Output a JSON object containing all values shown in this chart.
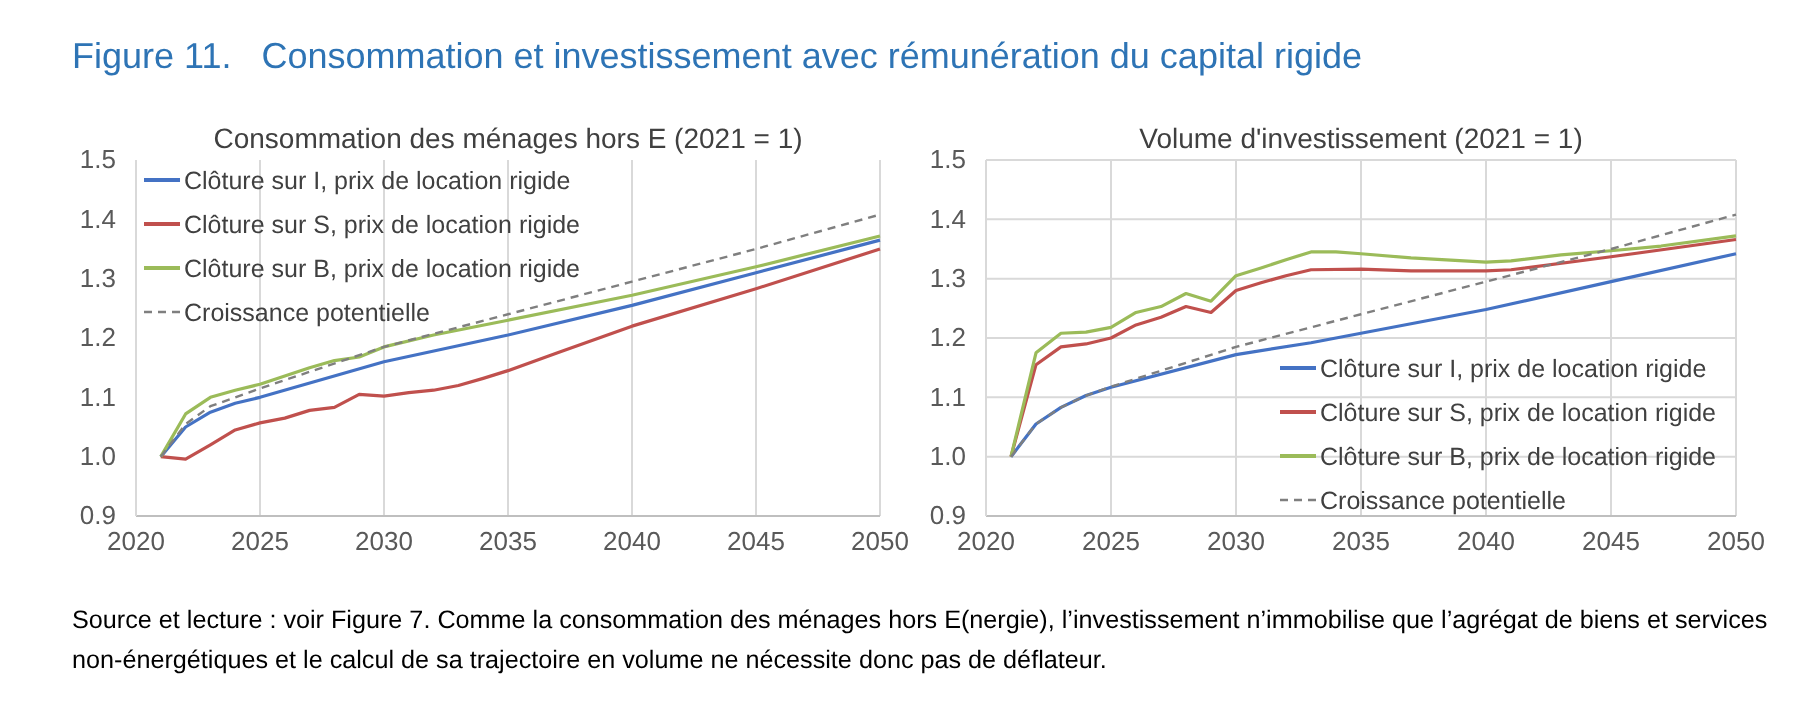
{
  "chart_data": [
    {
      "type": "line",
      "title": "Consommation des ménages hors E (2021 = 1)",
      "annotations": [
        "Figure 11.   Consommation et investissement avec rémunération du capital rigide"
      ],
      "xlim": [
        2020,
        2050
      ],
      "xticks": [
        2020,
        2025,
        2030,
        2035,
        2040,
        2045,
        2050
      ],
      "ylim": [
        0.9,
        1.5
      ],
      "yticks": [
        {
          "value": 0.9,
          "label": "0.9"
        },
        {
          "value": 1.0,
          "label": "1.0"
        },
        {
          "value": 1.1,
          "label": "1.1"
        },
        {
          "value": 1.2,
          "label": "1.2"
        },
        {
          "value": 1.3,
          "label": "1.3"
        },
        {
          "value": 1.4,
          "label": "1.4"
        },
        {
          "value": 1.5,
          "label": "1.5"
        }
      ],
      "grid": "x",
      "legend": "top left",
      "line_style": "solid",
      "marker": "none",
      "series": [
        {
          "name": "Clôture sur I, prix de location rigide",
          "color": "#4472c4",
          "x": [
            2021,
            2022,
            2023,
            2024,
            2025,
            2030,
            2035,
            2040,
            2045,
            2050
          ],
          "values": [
            1.0,
            1.05,
            1.075,
            1.09,
            1.1,
            1.16,
            1.205,
            1.255,
            1.31,
            1.365
          ]
        },
        {
          "name": "Clôture sur S, prix de location rigide",
          "color": "#c0504d",
          "x": [
            2021,
            2022,
            2023,
            2024,
            2025,
            2026,
            2027,
            2028,
            2029,
            2030,
            2031,
            2032,
            2033,
            2034,
            2035,
            2037,
            2040,
            2045,
            2050
          ],
          "values": [
            1.0,
            0.996,
            1.02,
            1.045,
            1.057,
            1.065,
            1.078,
            1.083,
            1.105,
            1.102,
            1.108,
            1.112,
            1.12,
            1.132,
            1.145,
            1.175,
            1.22,
            1.283,
            1.35
          ]
        },
        {
          "name": "Clôture sur B, prix de location rigide",
          "color": "#9bbb59",
          "x": [
            2021,
            2022,
            2023,
            2024,
            2025,
            2027,
            2028,
            2029,
            2030,
            2032,
            2035,
            2040,
            2045,
            2050
          ],
          "values": [
            1.0,
            1.072,
            1.1,
            1.112,
            1.122,
            1.15,
            1.162,
            1.168,
            1.185,
            1.205,
            1.23,
            1.272,
            1.32,
            1.372
          ]
        },
        {
          "name": "Croissance potentielle",
          "color": "#7f7f7f",
          "line_style": "dashed",
          "x": [
            2021,
            2022,
            2023,
            2025,
            2030,
            2035,
            2040,
            2045,
            2050
          ],
          "values": [
            1.0,
            1.055,
            1.085,
            1.115,
            1.185,
            1.24,
            1.295,
            1.35,
            1.408
          ]
        }
      ]
    },
    {
      "type": "line",
      "title": "Volume d'investissement (2021 = 1)",
      "annotations": [
        "Source et lecture : voir Figure 7. Comme la consommation des ménages hors E(nergie), l’investissement n’immobilise que l’agrégat de biens et services non-énergétiques et le calcul de sa trajectoire en volume ne nécessite donc pas de déflateur."
      ],
      "xlim": [
        2020,
        2050
      ],
      "xticks": [
        2020,
        2025,
        2030,
        2035,
        2040,
        2045,
        2050
      ],
      "ylim": [
        0.9,
        1.5
      ],
      "yticks": [
        {
          "value": 0.9,
          "label": "0.9"
        },
        {
          "value": 1.0,
          "label": "1.0"
        },
        {
          "value": 1.1,
          "label": "1.1"
        },
        {
          "value": 1.2,
          "label": "1.2"
        },
        {
          "value": 1.3,
          "label": "1.3"
        },
        {
          "value": 1.4,
          "label": "1.4"
        },
        {
          "value": 1.5,
          "label": "1.5"
        }
      ],
      "grid": true,
      "legend": "bottom right",
      "line_style": "solid",
      "marker": "none",
      "series": [
        {
          "name": "Clôture sur I, prix de location rigide",
          "color": "#4472c4",
          "x": [
            2021,
            2022,
            2023,
            2024,
            2025,
            2030,
            2033,
            2035,
            2040,
            2045,
            2050
          ],
          "values": [
            1.0,
            1.055,
            1.083,
            1.103,
            1.117,
            1.172,
            1.192,
            1.208,
            1.248,
            1.295,
            1.342
          ]
        },
        {
          "name": "Clôture sur S, prix de location rigide",
          "color": "#c0504d",
          "x": [
            2021,
            2022,
            2023,
            2024,
            2025,
            2026,
            2027,
            2028,
            2029,
            2030,
            2031,
            2032,
            2033,
            2035,
            2037,
            2040,
            2041,
            2045,
            2050
          ],
          "values": [
            1.0,
            1.155,
            1.185,
            1.19,
            1.2,
            1.222,
            1.235,
            1.253,
            1.243,
            1.28,
            1.293,
            1.305,
            1.315,
            1.316,
            1.313,
            1.313,
            1.315,
            1.337,
            1.366
          ]
        },
        {
          "name": "Clôture sur B, prix de location rigide",
          "color": "#9bbb59",
          "x": [
            2021,
            2022,
            2023,
            2024,
            2025,
            2026,
            2027,
            2028,
            2029,
            2030,
            2031,
            2032,
            2033,
            2034,
            2035,
            2037,
            2040,
            2041,
            2043,
            2045,
            2047,
            2050
          ],
          "values": [
            1.0,
            1.175,
            1.208,
            1.21,
            1.218,
            1.243,
            1.253,
            1.275,
            1.262,
            1.305,
            1.318,
            1.332,
            1.345,
            1.345,
            1.342,
            1.335,
            1.328,
            1.33,
            1.34,
            1.347,
            1.355,
            1.372
          ]
        },
        {
          "name": "Croissance potentielle",
          "color": "#7f7f7f",
          "line_style": "dashed",
          "x": [
            2021,
            2022,
            2023,
            2024,
            2025,
            2030,
            2035,
            2040,
            2045,
            2050
          ],
          "values": [
            1.0,
            1.055,
            1.083,
            1.103,
            1.118,
            1.185,
            1.24,
            1.295,
            1.35,
            1.408
          ]
        }
      ]
    }
  ]
}
